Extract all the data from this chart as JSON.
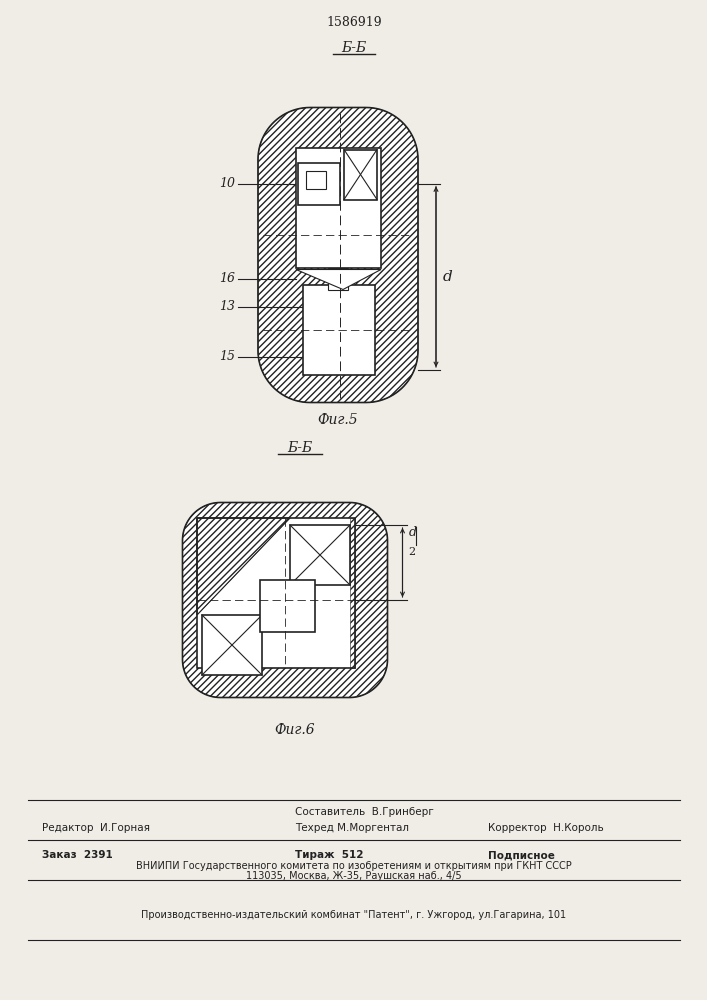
{
  "patent_number": "1586919",
  "fig5_section": "Б-Б",
  "fig5_caption": "Фиг.5",
  "fig6_section": "Б-Б",
  "fig6_caption": "Фиг.6",
  "dim_label_fig5": "d",
  "dim_label_fig6": "d/2",
  "footer_comp": "Составитель  В.Гринберг",
  "footer_editor": "Редактор  И.Горная",
  "footer_tech": "Техред М.Моргентал",
  "footer_corr": "Корректор  Н.Король",
  "footer_order": "Заказ  2391",
  "footer_tirazh": "Тираж  512",
  "footer_podp": "Подписное",
  "footer_vniip1": "ВНИИПИ Государственного комитета по изобретениям и открытиям при ГКНТ СССР",
  "footer_vniip2": "113035, Москва, Ж-35, Раушская наб., 4/5",
  "footer_prod": "Производственно-издательский комбинат \"Патент\", г. Ужгород, ул.Гагарина, 101",
  "bg": "#f0ece6",
  "lc": "#222222"
}
